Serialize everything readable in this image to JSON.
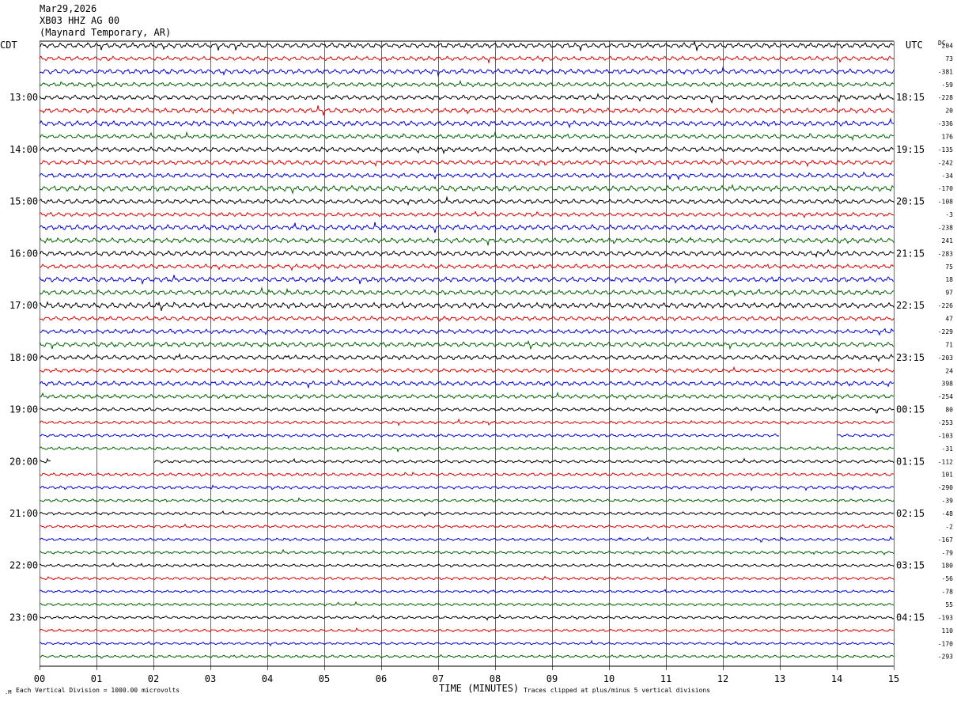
{
  "header": {
    "date": "Mar29,2026",
    "station": "XB03 HHZ AG 00",
    "location": "(Maynard Temporary, AR)"
  },
  "left_axis_label": "CDT",
  "right_axis_label": "UTC",
  "dc_label": "DC",
  "footer": {
    "scale_note": "Each Vertical Division = 1000.00 microvolts",
    "xlabel": "TIME (MINUTES)",
    "clip_note": "Traces clipped at plus/minus 5 vertical divisions"
  },
  "colors": {
    "trace_cycle": [
      "#000000",
      "#e00000",
      "#0000e0",
      "#006400"
    ],
    "grid": "#000000",
    "background": "#ffffff"
  },
  "chart_data": {
    "type": "line",
    "title": "XB03 HHZ AG 00",
    "xlabel": "TIME (MINUTES)",
    "xlim": [
      0,
      15
    ],
    "x_ticks": [
      "00",
      "01",
      "02",
      "03",
      "04",
      "05",
      "06",
      "07",
      "08",
      "09",
      "10",
      "11",
      "12",
      "13",
      "14",
      "15"
    ],
    "rows_per_hour": 4,
    "row_minutes": 15,
    "left_hour_labels": [
      "13:00",
      "14:00",
      "15:00",
      "16:00",
      "17:00",
      "18:00",
      "19:00",
      "20:00",
      "21:00",
      "22:00",
      "23:00"
    ],
    "right_hour_labels": [
      "18:15",
      "19:15",
      "20:15",
      "21:15",
      "22:15",
      "23:15",
      "00:15",
      "01:15",
      "02:15",
      "03:15",
      "04:15"
    ],
    "first_labeled_row": 4,
    "dc_offsets": [
      "204",
      "73",
      "-381",
      "-59",
      "-228",
      "20",
      "-336",
      "176",
      "-135",
      "-242",
      "-34",
      "-170",
      "-108",
      "-3",
      "-238",
      "241",
      "-283",
      "75",
      "18",
      "97",
      "-226",
      "47",
      "-229",
      "71",
      "-203",
      "24",
      "398",
      "-254",
      "80",
      "-253",
      "-103",
      "-31",
      "-112",
      "101",
      "-290",
      "-39",
      "-48",
      "-2",
      "-167",
      "-79",
      "180",
      "-56",
      "-78",
      "55",
      "-193",
      "110",
      "-170",
      "-293"
    ],
    "row_amplitude": [
      3.4,
      2.8,
      3.2,
      2.8,
      3.0,
      3.2,
      3.4,
      2.8,
      3.2,
      3.0,
      2.9,
      3.6,
      3.0,
      2.6,
      3.4,
      3.2,
      3.2,
      2.8,
      3.4,
      3.2,
      3.6,
      2.8,
      2.8,
      3.2,
      3.0,
      2.6,
      3.0,
      2.6,
      2.2,
      2.0,
      2.0,
      2.0,
      2.0,
      2.0,
      2.0,
      1.8,
      2.0,
      1.8,
      1.8,
      1.8,
      1.8,
      1.8,
      1.6,
      1.8,
      1.8,
      1.8,
      1.6,
      1.8
    ],
    "data_gaps_minutes": [
      {
        "row": 30,
        "from": 13.0,
        "to": 14.0
      },
      {
        "row": 32,
        "from": 0.2,
        "to": 2.0
      }
    ],
    "grid": true
  }
}
